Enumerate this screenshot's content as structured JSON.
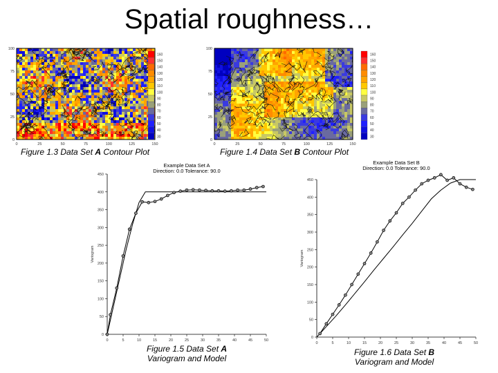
{
  "slide": {
    "title": "Spatial roughness…"
  },
  "contour_a": {
    "caption_prefix": "Figure 1.3  Data Set ",
    "caption_bold": "A",
    "caption_suffix": " Contour Plot",
    "legend": [
      "160",
      "150",
      "140",
      "130",
      "120",
      "110",
      "100",
      "90",
      "80",
      "70",
      "60",
      "50",
      "40",
      "30"
    ]
  },
  "contour_b": {
    "caption_prefix": "Figure 1.4  Data Set ",
    "caption_bold": "B",
    "caption_suffix": " Contour Plot",
    "legend": [
      "160",
      "150",
      "140",
      "130",
      "120",
      "110",
      "100",
      "90",
      "80",
      "70",
      "60",
      "50",
      "40",
      "30"
    ]
  },
  "legend_colors": [
    "#ff0000",
    "#ff3030",
    "#ff6a00",
    "#ff8c00",
    "#ffa500",
    "#ffc800",
    "#ffff40",
    "#c8c864",
    "#9aa07a",
    "#6a6aa0",
    "#3a3ae0",
    "#2020ff",
    "#1010e0",
    "#0000c0"
  ],
  "fig5": {
    "caption_line1_prefix": "Figure 1.5  Data Set ",
    "caption_line1_bold": "A",
    "caption_line2": "Variogram and Model"
  },
  "fig6": {
    "caption_line1_prefix": "Figure 1.6  Data Set ",
    "caption_line1_bold": "B",
    "caption_line2": "Variogram and Model"
  },
  "chart_data": [
    {
      "type": "heatmap",
      "title": "",
      "xlabel": "",
      "ylabel": "",
      "xlim": [
        0,
        150
      ],
      "ylim": [
        0,
        100
      ],
      "x_ticks": [
        "0",
        "25",
        "50",
        "75",
        "100",
        "125",
        "150"
      ],
      "y_ticks": [
        "0",
        "25",
        "50",
        "75",
        "100"
      ],
      "y_tick_values": [
        0,
        25,
        50,
        75,
        100
      ],
      "colorbar": [
        160,
        150,
        140,
        130,
        120,
        110,
        100,
        90,
        80,
        70,
        60,
        50,
        40,
        30
      ]
    },
    {
      "type": "heatmap",
      "title": "",
      "xlabel": "",
      "ylabel": "",
      "xlim": [
        0,
        150
      ],
      "ylim": [
        0,
        100
      ],
      "x_ticks": [
        "0",
        "25",
        "50",
        "75",
        "100",
        "125",
        "150"
      ],
      "y_ticks": [
        "0",
        "25",
        "50",
        "75",
        "100"
      ],
      "y_tick_values": [
        0,
        25,
        50,
        75,
        100
      ],
      "colorbar": [
        160,
        150,
        140,
        130,
        120,
        110,
        100,
        90,
        80,
        70,
        60,
        50,
        40,
        30
      ]
    },
    {
      "type": "line",
      "title": "Example Data Set A",
      "subtitle": "Direction: 0.0   Tolerance: 90.0",
      "xlabel": "Lag Distance",
      "ylabel": "Variogram",
      "xlim": [
        0,
        50
      ],
      "ylim": [
        0,
        450
      ],
      "x_ticks": [
        0,
        5,
        10,
        15,
        20,
        25,
        30,
        35,
        40,
        45,
        50
      ],
      "y_ticks": [
        0,
        50,
        100,
        150,
        200,
        250,
        300,
        350,
        400,
        450
      ],
      "series": [
        {
          "x": [
            0,
            1,
            3,
            5,
            7,
            9,
            11,
            13,
            15,
            17,
            19,
            21,
            23,
            25,
            27,
            29,
            31,
            33,
            35,
            37,
            39,
            41,
            43,
            45,
            47,
            49
          ],
          "y": [
            0,
            55,
            130,
            220,
            295,
            340,
            372,
            370,
            373,
            380,
            390,
            398,
            402,
            405,
            406,
            405,
            404,
            403,
            403,
            402,
            403,
            405,
            405,
            408,
            412,
            415
          ]
        },
        {
          "x": [
            0,
            2,
            4,
            6,
            8,
            10,
            12,
            14,
            50
          ],
          "y": [
            0,
            80,
            160,
            240,
            310,
            370,
            400,
            400,
            400
          ]
        }
      ]
    },
    {
      "type": "line",
      "title": "Example Data Set B",
      "subtitle": "Direction: 0.0   Tolerance: 90.0",
      "xlabel": "Lag Distance",
      "ylabel": "Variogram",
      "xlim": [
        0,
        50
      ],
      "ylim": [
        0,
        450
      ],
      "x_ticks": [
        0,
        5,
        10,
        15,
        20,
        25,
        30,
        35,
        40,
        45,
        50
      ],
      "y_ticks": [
        0,
        50,
        100,
        150,
        200,
        250,
        300,
        350,
        400,
        450
      ],
      "series": [
        {
          "x": [
            1,
            3,
            5,
            7,
            9,
            11,
            13,
            15,
            17,
            19,
            21,
            23,
            25,
            27,
            29,
            31,
            33,
            35,
            37,
            39,
            41,
            43,
            45,
            47,
            49
          ],
          "y": [
            10,
            38,
            65,
            92,
            120,
            150,
            180,
            210,
            240,
            272,
            305,
            332,
            355,
            382,
            400,
            420,
            438,
            448,
            455,
            464,
            448,
            455,
            438,
            428,
            422
          ]
        },
        {
          "x": [
            0,
            3,
            6,
            9,
            12,
            15,
            18,
            21,
            24,
            27,
            30,
            33,
            36,
            39,
            42,
            45,
            50
          ],
          "y": [
            0,
            30,
            60,
            92,
            125,
            158,
            192,
            225,
            258,
            292,
            325,
            360,
            395,
            420,
            440,
            450,
            450
          ]
        }
      ]
    }
  ]
}
